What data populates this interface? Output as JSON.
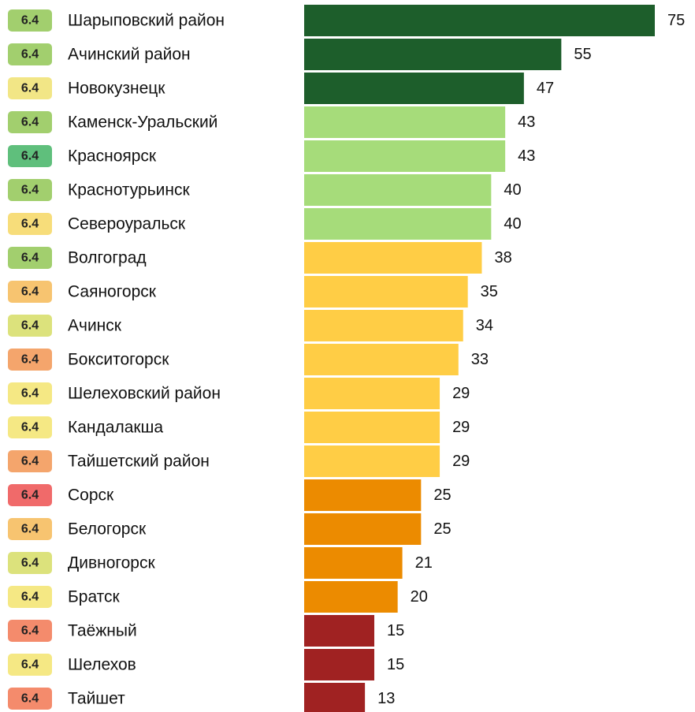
{
  "chart_data": {
    "type": "barh",
    "categories": [
      "Шарыповский район",
      "Ачинский район",
      "Новокузнецк",
      "Каменск-Уральский",
      "Красноярск",
      "Краснотурьинск",
      "Североуральск",
      "Волгоград",
      "Саяногорск",
      "Ачинск",
      "Бокситогорск",
      "Шелеховский район",
      "Кандалакша",
      "Тайшетский район",
      "Сорск",
      "Белогорск",
      "Дивногорск",
      "Братск",
      "Таёжный",
      "Шелехов",
      "Тайшет"
    ],
    "values": [
      75,
      55,
      47,
      43,
      43,
      40,
      40,
      38,
      35,
      34,
      33,
      29,
      29,
      29,
      25,
      25,
      21,
      20,
      15,
      15,
      13
    ],
    "colors": [
      "#1d5e2b",
      "#1d5e2b",
      "#1d5e2b",
      "#a6dc7a",
      "#a6dc7a",
      "#a6dc7a",
      "#a6dc7a",
      "#ffcd45",
      "#ffcd45",
      "#ffcd45",
      "#ffcd45",
      "#ffcd45",
      "#ffcd45",
      "#ffcd45",
      "#ec8b00",
      "#ec8b00",
      "#ec8b00",
      "#ec8b00",
      "#a02222",
      "#a02222",
      "#a02222"
    ],
    "badge_labels": [
      "6.4",
      "6.4",
      "6.4",
      "6.4",
      "6.4",
      "6.4",
      "6.4",
      "6.4",
      "6.4",
      "6.4",
      "6.4",
      "6.4",
      "6.4",
      "6.4",
      "6.4",
      "6.4",
      "6.4",
      "6.4",
      "6.4",
      "6.4",
      "6.4"
    ],
    "badge_colors": [
      "#a2cf6e",
      "#a2cf6e",
      "#f2e686",
      "#a2cf6e",
      "#5fbf7c",
      "#a2cf6e",
      "#f7dd7a",
      "#a2cf6e",
      "#f7c470",
      "#dce27c",
      "#f4a56c",
      "#f5e884",
      "#f5e884",
      "#f4a56c",
      "#f06a6a",
      "#f7c470",
      "#dce27c",
      "#f5e884",
      "#f48b6c",
      "#f5e884",
      "#f48b6c"
    ],
    "xlim": [
      0,
      75
    ]
  }
}
